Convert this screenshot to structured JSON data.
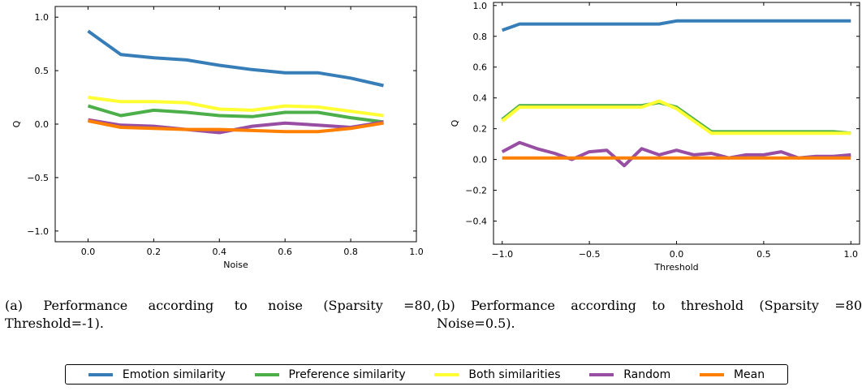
{
  "chart_data": [
    {
      "type": "line",
      "xlabel": "Noise",
      "ylabel": "Q",
      "xlim": [
        -0.1,
        1.0
      ],
      "ylim": [
        -1.1,
        1.1
      ],
      "xticks": [
        0.0,
        0.2,
        0.4,
        0.6,
        0.8,
        1.0
      ],
      "xtick_labels": [
        "0.0",
        "0.2",
        "0.4",
        "0.6",
        "0.8",
        "1.0"
      ],
      "yticks": [
        -1.0,
        -0.5,
        0.0,
        0.5,
        1.0
      ],
      "ytick_labels": [
        "−1.0",
        "−0.5",
        "0.0",
        "0.5",
        "1.0"
      ],
      "x": [
        0.0,
        0.1,
        0.2,
        0.3,
        0.4,
        0.5,
        0.6,
        0.7,
        0.8,
        0.9
      ],
      "series": [
        {
          "name": "Emotion similarity",
          "color": "#377eb8",
          "values": [
            0.87,
            0.65,
            0.62,
            0.6,
            0.55,
            0.51,
            0.48,
            0.48,
            0.43,
            0.36
          ]
        },
        {
          "name": "Preference similarity",
          "color": "#4daf4a",
          "values": [
            0.17,
            0.08,
            0.13,
            0.11,
            0.08,
            0.07,
            0.11,
            0.11,
            0.06,
            0.02
          ]
        },
        {
          "name": "Both similarities",
          "color": "#ffff33",
          "values": [
            0.25,
            0.21,
            0.21,
            0.2,
            0.14,
            0.13,
            0.17,
            0.16,
            0.12,
            0.08
          ]
        },
        {
          "name": "Random",
          "color": "#984ea3",
          "values": [
            0.04,
            -0.01,
            -0.02,
            -0.05,
            -0.08,
            -0.02,
            0.01,
            -0.01,
            -0.03,
            0.02
          ]
        },
        {
          "name": "Mean",
          "color": "#ff7f00",
          "values": [
            0.03,
            -0.03,
            -0.04,
            -0.05,
            -0.05,
            -0.06,
            -0.07,
            -0.07,
            -0.04,
            0.01
          ]
        }
      ],
      "caption": "(a) Performance according to noise (Sparsity =80, Threshold=-1)."
    },
    {
      "type": "line",
      "xlabel": "Threshold",
      "ylabel": "Q",
      "xlim": [
        -1.05,
        1.05
      ],
      "ylim": [
        -0.55,
        1.02
      ],
      "xticks": [
        -1.0,
        -0.5,
        0.0,
        0.5,
        1.0
      ],
      "xtick_labels": [
        "−1.0",
        "−0.5",
        "0.0",
        "0.5",
        "1.0"
      ],
      "yticks": [
        -0.4,
        -0.2,
        0.0,
        0.2,
        0.4,
        0.6,
        0.8,
        1.0
      ],
      "ytick_labels": [
        "−0.4",
        "−0.2",
        "0.0",
        "0.2",
        "0.4",
        "0.6",
        "0.8",
        "1.0"
      ],
      "x": [
        -1.0,
        -0.9,
        -0.8,
        -0.7,
        -0.6,
        -0.5,
        -0.4,
        -0.3,
        -0.2,
        -0.1,
        0.0,
        0.1,
        0.2,
        0.3,
        0.4,
        0.5,
        0.6,
        0.7,
        0.8,
        0.9,
        1.0
      ],
      "series": [
        {
          "name": "Emotion similarity",
          "color": "#377eb8",
          "values": [
            0.84,
            0.88,
            0.88,
            0.88,
            0.88,
            0.88,
            0.88,
            0.88,
            0.88,
            0.88,
            0.9,
            0.9,
            0.9,
            0.9,
            0.9,
            0.9,
            0.9,
            0.9,
            0.9,
            0.9,
            0.9
          ]
        },
        {
          "name": "Preference similarity",
          "color": "#4daf4a",
          "values": [
            0.26,
            0.35,
            0.35,
            0.35,
            0.35,
            0.35,
            0.35,
            0.35,
            0.35,
            0.37,
            0.34,
            0.26,
            0.18,
            0.18,
            0.18,
            0.18,
            0.18,
            0.18,
            0.18,
            0.18,
            0.17
          ]
        },
        {
          "name": "Both similarities",
          "color": "#ffff33",
          "values": [
            0.25,
            0.34,
            0.34,
            0.34,
            0.34,
            0.34,
            0.34,
            0.34,
            0.34,
            0.38,
            0.33,
            0.25,
            0.17,
            0.17,
            0.17,
            0.17,
            0.17,
            0.17,
            0.17,
            0.17,
            0.17
          ]
        },
        {
          "name": "Random",
          "color": "#984ea3",
          "values": [
            0.05,
            0.11,
            0.07,
            0.04,
            0.0,
            0.05,
            0.06,
            -0.04,
            0.07,
            0.03,
            0.06,
            0.03,
            0.04,
            0.01,
            0.03,
            0.03,
            0.05,
            0.01,
            0.02,
            0.02,
            0.03
          ]
        },
        {
          "name": "Mean",
          "color": "#ff7f00",
          "values": [
            0.01,
            0.01,
            0.01,
            0.01,
            0.01,
            0.01,
            0.01,
            0.01,
            0.01,
            0.01,
            0.01,
            0.01,
            0.01,
            0.01,
            0.01,
            0.01,
            0.01,
            0.01,
            0.01,
            0.01,
            0.01
          ]
        }
      ],
      "caption": "(b) Performance according to threshold (Sparsity =80 Noise=0.5)."
    }
  ],
  "legend": {
    "placement": "bottom-center",
    "items": [
      {
        "label": "Emotion similarity",
        "color": "#377eb8"
      },
      {
        "label": "Preference similarity",
        "color": "#4daf4a"
      },
      {
        "label": "Both similarities",
        "color": "#ffff33"
      },
      {
        "label": "Random",
        "color": "#984ea3"
      },
      {
        "label": "Mean",
        "color": "#ff7f00"
      }
    ]
  }
}
